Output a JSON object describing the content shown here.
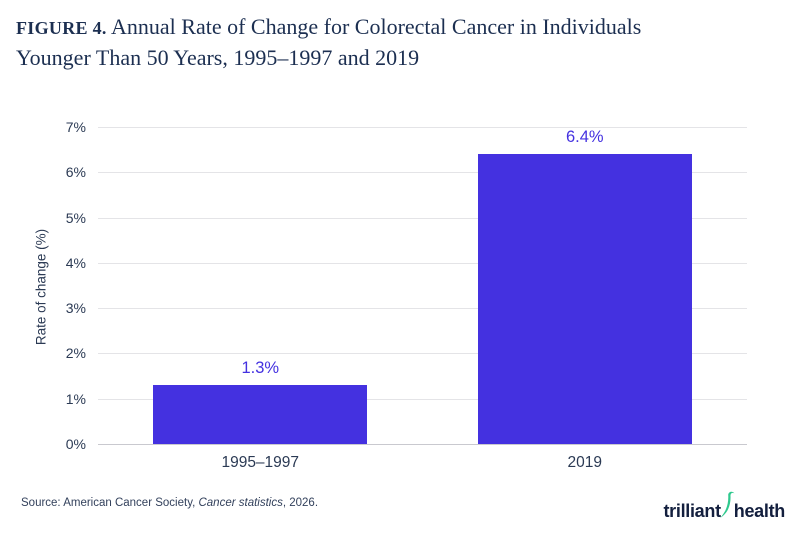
{
  "title": {
    "figure_label": "FIGURE 4.",
    "line1": "Annual Rate of Change for Colorectal Cancer in Individuals",
    "line2": "Younger Than 50 Years, 1995–1997 and 2019"
  },
  "chart_data": {
    "type": "bar",
    "categories": [
      "1995–1997",
      "2019"
    ],
    "values": [
      1.3,
      6.4
    ],
    "value_labels": [
      "1.3%",
      "6.4%"
    ],
    "title": "Annual Rate of Change for Colorectal Cancer in Individuals Younger Than 50 Years, 1995–1997 and 2019",
    "xlabel": "",
    "ylabel": "Rate of change (%)",
    "ylim": [
      0,
      7
    ],
    "ytick_step": 1,
    "ytick_suffix": "%",
    "grid": true,
    "legend": false,
    "bar_color": "#4431e0"
  },
  "footer": {
    "source_prefix": "Source: American Cancer Society, ",
    "source_italic": "Cancer statistics",
    "source_suffix": ", 2026.",
    "logo_word1": "trilliant",
    "logo_word2": "health"
  },
  "colors": {
    "accent_purple": "#4431e0",
    "title_navy": "#1c2f51",
    "axis_text_navy": "#2b3a54",
    "gridline_gray": "#e4e4e7",
    "baseline_gray": "#c9c9cf",
    "logo_navy": "#131f3e",
    "swoosh_green": "#2fc98e",
    "background": "#ffffff"
  }
}
